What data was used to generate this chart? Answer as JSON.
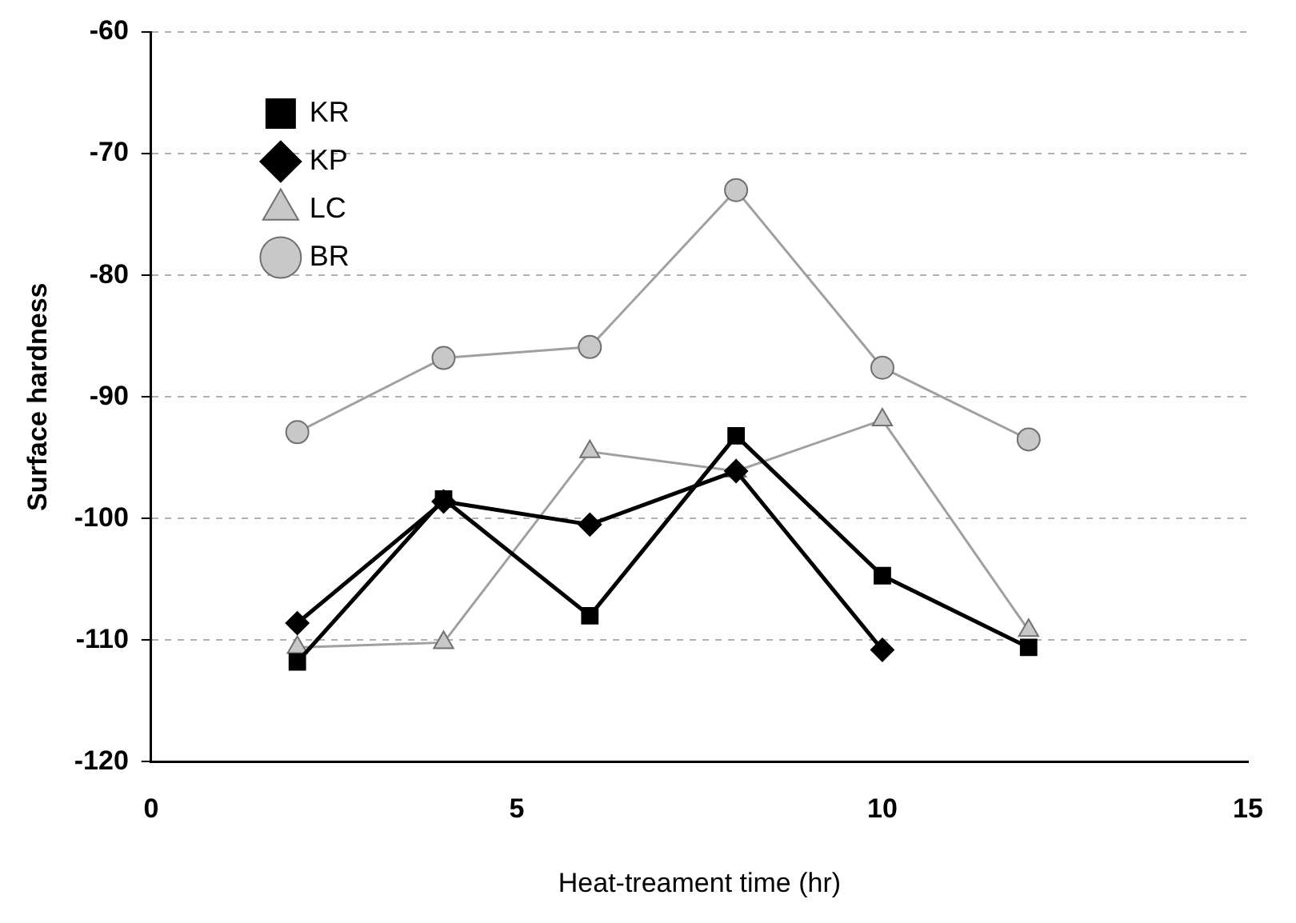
{
  "chart_data": {
    "type": "line",
    "xlabel": "Heat-treament time (hr)",
    "ylabel": "Surface hardness",
    "x": [
      2,
      4,
      6,
      8,
      10,
      12
    ],
    "series": [
      {
        "name": "KR",
        "color": "#000000",
        "marker": "square",
        "values": [
          -111.8,
          -98.4,
          -108.0,
          -93.2,
          -104.7,
          -110.6
        ]
      },
      {
        "name": "KP",
        "color": "#000000",
        "marker": "diamond",
        "values": [
          -108.6,
          -98.6,
          -100.5,
          -96.1,
          -110.8,
          null
        ]
      },
      {
        "name": "LC",
        "color": "#a0a0a0",
        "marker": "triangle",
        "values": [
          -110.6,
          -110.2,
          -94.5,
          -96.1,
          -91.9,
          -109.2
        ]
      },
      {
        "name": "BR",
        "color": "#a0a0a0",
        "marker": "circle",
        "values": [
          -92.9,
          -86.8,
          -85.9,
          -73.0,
          -87.6,
          -93.5
        ]
      }
    ],
    "xlim": [
      0,
      15
    ],
    "xticks": [
      0,
      5,
      10,
      15
    ],
    "ylim": [
      -120,
      -60
    ],
    "yticks": [
      -120,
      -110,
      -100,
      -90,
      -80,
      -70,
      -60
    ],
    "grid": "y",
    "legend": "top left"
  }
}
